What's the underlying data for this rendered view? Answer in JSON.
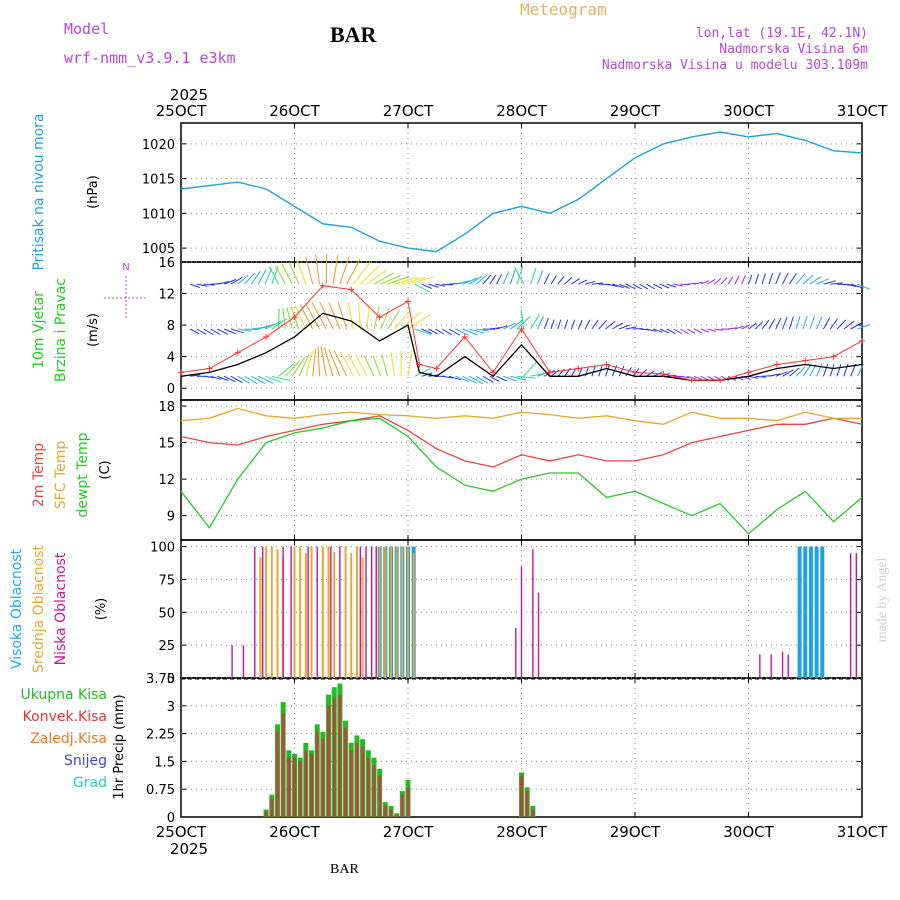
{
  "header": {
    "model_label": "Model",
    "model_name": "wrf-nmm_v3.9.1 e3km",
    "station": "BAR",
    "title": "Meteogram",
    "lonlat": "lon,lat (19.1E, 42.1N)",
    "elevation": "Nadmorska Visina 6m",
    "model_elevation": "Nadmorska Visina u modelu 303.109m"
  },
  "footer": {
    "station": "BAR",
    "credit": "made by Angel"
  },
  "colors": {
    "pressure": "#1fa0e0",
    "wind_speed": "#000000",
    "wind_gust": "#ff3333",
    "temp2m": "#ee4444",
    "sfc_temp": "#e8a830",
    "dewpoint": "#22cc22",
    "cloud_high": "#1fa0e0",
    "cloud_mid": "#e8a830",
    "cloud_low": "#cc1199",
    "precip_total": "#22bb22",
    "precip_conv": "#bb4444",
    "accent_purple": "#bb44dd"
  },
  "chart_data": [
    {
      "type": "line",
      "panel": "pressure",
      "ylabel": "Pritisak na nivou mora",
      "units": "(hPa)",
      "ylim": [
        1003,
        1023
      ],
      "yticks": [
        "1005",
        "1010",
        "1015",
        "1020"
      ],
      "x": [
        0,
        0.25,
        0.5,
        0.75,
        1,
        1.25,
        1.5,
        1.75,
        2,
        2.25,
        2.5,
        2.75,
        3,
        3.25,
        3.5,
        3.75,
        4,
        4.25,
        4.5,
        4.75,
        5,
        5.25,
        5.5,
        5.75,
        6
      ],
      "values": [
        1013.5,
        1014.0,
        1014.5,
        1013.5,
        1011.0,
        1008.5,
        1008.0,
        1006.0,
        1005.0,
        1004.5,
        1007.0,
        1010.0,
        1011.0,
        1010.0,
        1012.0,
        1015.0,
        1018.0,
        1020.0,
        1021.0,
        1021.7,
        1021.0,
        1021.5,
        1020.5,
        1019.0,
        1018.7
      ]
    },
    {
      "type": "line",
      "panel": "wind",
      "ylabel": [
        "10m Vjetar",
        "Brzina i Pravac"
      ],
      "units": "(m/s)",
      "compass": "N",
      "ylim": [
        -1.5,
        16
      ],
      "yticks": [
        "0",
        "4",
        "8",
        "12",
        "16"
      ],
      "arrow_rows": [
        1.5,
        7.5,
        13.2
      ],
      "series": [
        {
          "name": "Wind speed",
          "x": [
            0,
            0.25,
            0.5,
            0.75,
            1,
            1.25,
            1.5,
            1.75,
            2,
            2.1,
            2.25,
            2.5,
            2.75,
            3,
            3.25,
            3.5,
            3.75,
            4,
            4.25,
            4.5,
            4.75,
            5,
            5.25,
            5.5,
            5.75,
            6
          ],
          "values": [
            1.5,
            2.0,
            3.0,
            4.5,
            6.5,
            9.5,
            8.5,
            6.0,
            8.0,
            2.0,
            1.5,
            4.0,
            1.5,
            5.5,
            1.5,
            1.5,
            2.5,
            1.5,
            1.5,
            1.0,
            1.0,
            1.5,
            2.5,
            3.0,
            2.5,
            3.0
          ]
        },
        {
          "name": "Wind gust",
          "x": [
            0,
            0.25,
            0.5,
            0.75,
            1,
            1.25,
            1.5,
            1.75,
            2,
            2.1,
            2.25,
            2.5,
            2.75,
            3,
            3.25,
            3.5,
            3.75,
            4,
            4.25,
            4.5,
            4.75,
            5,
            5.25,
            5.5,
            5.75,
            6
          ],
          "values": [
            2.0,
            2.5,
            4.5,
            6.5,
            9.0,
            13.0,
            12.5,
            9.0,
            11.0,
            3.0,
            2.5,
            6.5,
            2.0,
            7.5,
            2.0,
            2.5,
            3.0,
            2.0,
            1.8,
            1.0,
            1.0,
            2.0,
            3.0,
            3.5,
            4.0,
            6.0
          ]
        }
      ]
    },
    {
      "type": "line",
      "panel": "temperature",
      "ylabel": [
        "2m Temp",
        "SFC Temp",
        "dewpt Temp"
      ],
      "units": "(C)",
      "ylim": [
        7,
        18.5
      ],
      "yticks": [
        "9",
        "12",
        "15",
        "18"
      ],
      "series": [
        {
          "name": "2m Temp",
          "x": [
            0,
            0.25,
            0.5,
            0.75,
            1,
            1.25,
            1.5,
            1.75,
            2,
            2.25,
            2.5,
            2.75,
            3,
            3.25,
            3.5,
            3.75,
            4,
            4.25,
            4.5,
            4.75,
            5,
            5.25,
            5.5,
            5.75,
            6
          ],
          "values": [
            15.5,
            15.0,
            14.8,
            15.5,
            16.0,
            16.5,
            16.8,
            17.2,
            16.0,
            14.5,
            13.5,
            13.0,
            14.0,
            13.5,
            14.0,
            13.5,
            13.5,
            14.0,
            15.0,
            15.5,
            16.0,
            16.5,
            16.5,
            17.0,
            16.5
          ]
        },
        {
          "name": "SFC Temp",
          "x": [
            0,
            0.25,
            0.5,
            0.75,
            1,
            1.25,
            1.5,
            1.75,
            2,
            2.25,
            2.5,
            2.75,
            3,
            3.25,
            3.5,
            3.75,
            4,
            4.25,
            4.5,
            4.75,
            5,
            5.25,
            5.5,
            5.75,
            6
          ],
          "values": [
            16.8,
            17.0,
            17.8,
            17.2,
            17.0,
            17.3,
            17.5,
            17.3,
            17.2,
            17.0,
            17.2,
            17.0,
            17.5,
            17.3,
            17.0,
            17.2,
            16.8,
            16.5,
            17.5,
            17.0,
            17.0,
            16.8,
            17.5,
            17.0,
            17.0
          ]
        },
        {
          "name": "dewpt Temp",
          "x": [
            0,
            0.25,
            0.5,
            0.75,
            1,
            1.25,
            1.5,
            1.75,
            2,
            2.25,
            2.5,
            2.75,
            3,
            3.25,
            3.5,
            3.75,
            4,
            4.25,
            4.5,
            4.75,
            5,
            5.25,
            5.5,
            5.75,
            6
          ],
          "values": [
            11.0,
            8.0,
            12.0,
            15.0,
            15.8,
            16.2,
            16.8,
            17.0,
            15.5,
            13.0,
            11.5,
            11.0,
            12.0,
            12.5,
            12.5,
            10.5,
            11.0,
            10.0,
            9.0,
            10.0,
            7.5,
            9.5,
            11.0,
            8.5,
            10.5
          ]
        }
      ]
    },
    {
      "type": "bar",
      "panel": "clouds",
      "ylabel": [
        "Visoka Oblacnost",
        "Srednja Oblacnost",
        "Niska Oblacnost"
      ],
      "units": "(%)",
      "ylim": [
        0,
        105
      ],
      "yticks": [
        "0",
        "25",
        "50",
        "75",
        "100"
      ],
      "series": [
        {
          "name": "Visoka Oblacnost",
          "x": [
            1.75,
            1.8,
            1.85,
            1.9,
            1.95,
            2.0,
            2.05,
            5.45,
            5.5,
            5.55,
            5.6,
            5.65
          ],
          "values": [
            100,
            100,
            100,
            100,
            100,
            100,
            100,
            100,
            100,
            100,
            100,
            100
          ]
        },
        {
          "name": "Srednja Oblacnost",
          "x": [
            0.7,
            0.75,
            0.8,
            0.85,
            0.9,
            1.0,
            1.05,
            1.1,
            1.15,
            1.25,
            1.3,
            1.35,
            1.45,
            1.5,
            1.55,
            1.6,
            1.75,
            1.8,
            1.85,
            1.9,
            1.95,
            2.0,
            2.05
          ],
          "values": [
            92,
            100,
            100,
            98,
            92,
            100,
            100,
            95,
            100,
            100,
            100,
            96,
            100,
            95,
            100,
            92,
            100,
            100,
            100,
            100,
            100,
            100,
            95
          ]
        },
        {
          "name": "Niska Oblacnost",
          "x": [
            0.45,
            0.55,
            0.65,
            0.72,
            0.9,
            0.97,
            1.12,
            1.2,
            1.32,
            1.4,
            1.58,
            1.63,
            1.68,
            1.72,
            2.95,
            3.0,
            3.1,
            3.15,
            5.1,
            5.2,
            5.3,
            5.35,
            5.9,
            5.95
          ],
          "values": [
            25,
            25,
            100,
            100,
            100,
            100,
            100,
            100,
            100,
            100,
            100,
            100,
            100,
            100,
            38,
            85,
            98,
            65,
            18,
            18,
            20,
            18,
            95,
            95
          ]
        }
      ]
    },
    {
      "type": "bar",
      "panel": "precip",
      "ylabel": "1hr Precip (mm)",
      "legend": [
        "Ukupna Kisa",
        "Konvek.Kisa",
        "Zaledj.Kisa",
        "Snijeg",
        "Grad"
      ],
      "legend_colors": [
        "#22bb22",
        "#ee3333",
        "#ee7722",
        "#4444ee",
        "#22cccc"
      ],
      "ylim": [
        0,
        3.75
      ],
      "yticks": [
        "0",
        "0.75",
        "1.5",
        "2.25",
        "3",
        "3.75"
      ],
      "series": [
        {
          "name": "Ukupna Kisa",
          "x": [
            0.75,
            0.8,
            0.85,
            0.9,
            0.95,
            1.0,
            1.05,
            1.1,
            1.15,
            1.2,
            1.25,
            1.3,
            1.35,
            1.4,
            1.45,
            1.5,
            1.55,
            1.6,
            1.65,
            1.7,
            1.75,
            1.8,
            1.85,
            1.9,
            1.95,
            2.0,
            3.0,
            3.05,
            3.1
          ],
          "values": [
            0.2,
            0.6,
            2.5,
            3.1,
            1.8,
            1.7,
            1.6,
            2.0,
            1.8,
            2.5,
            2.3,
            3.3,
            3.5,
            3.6,
            2.6,
            2.0,
            2.2,
            2.1,
            1.8,
            1.6,
            1.3,
            0.4,
            0.3,
            0.1,
            0.7,
            1.0,
            1.2,
            0.8,
            0.3
          ]
        },
        {
          "name": "Konvek.Kisa",
          "x": [
            0.75,
            0.8,
            0.85,
            0.9,
            0.95,
            1.0,
            1.05,
            1.1,
            1.15,
            1.2,
            1.25,
            1.3,
            1.35,
            1.4,
            1.45,
            1.5,
            1.55,
            1.6,
            1.65,
            1.7,
            1.75,
            1.8,
            1.85,
            1.9,
            1.95,
            2.0,
            3.0,
            3.05,
            3.1
          ],
          "values": [
            0.15,
            0.5,
            2.3,
            2.8,
            1.6,
            1.6,
            1.5,
            1.8,
            1.7,
            2.3,
            2.1,
            3.0,
            3.2,
            3.3,
            2.4,
            1.8,
            2.0,
            1.9,
            1.6,
            1.4,
            1.1,
            0.3,
            0.2,
            0.05,
            0.6,
            0.8,
            1.1,
            0.7,
            0.2
          ]
        }
      ]
    }
  ],
  "xaxis": {
    "labels": [
      "25OCT",
      "26OCT",
      "27OCT",
      "28OCT",
      "29OCT",
      "30OCT",
      "31OCT"
    ],
    "year": "2025"
  }
}
